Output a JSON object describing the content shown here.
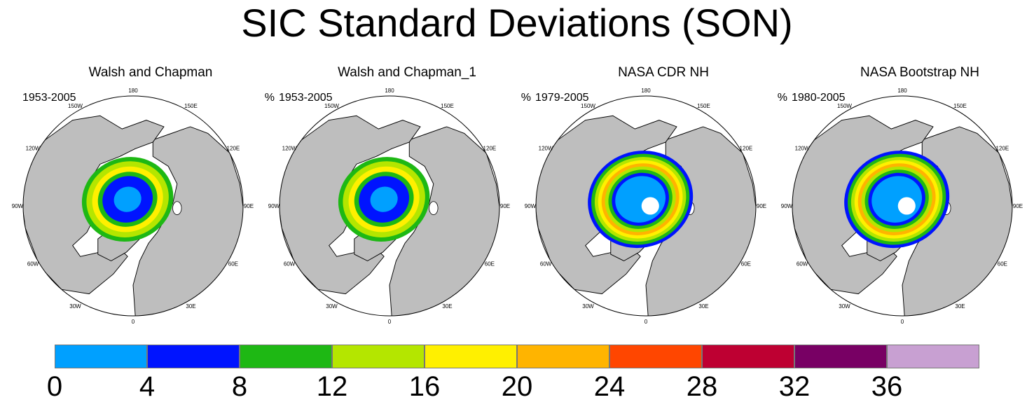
{
  "title": "SIC Standard Deviations (SON)",
  "unit": "%",
  "longitude_labels": [
    "180",
    "150W",
    "150E",
    "120W",
    "120E",
    "90W",
    "90E",
    "60W",
    "60E",
    "30W",
    "30E",
    "0"
  ],
  "panels": [
    {
      "title": "Walsh and Chapman",
      "years": "1953-2005",
      "pole_hole": false,
      "pattern": "wc"
    },
    {
      "title": "Walsh and Chapman_1",
      "years": "1953-2005",
      "pole_hole": false,
      "pattern": "wc"
    },
    {
      "title": "NASA CDR NH",
      "years": "1979-2005",
      "pole_hole": true,
      "pattern": "nasa"
    },
    {
      "title": "NASA Bootstrap NH",
      "years": "1980-2005",
      "pole_hole": true,
      "pattern": "nasa"
    }
  ],
  "colorbar": {
    "labels": [
      "0",
      "4",
      "8",
      "12",
      "16",
      "20",
      "24",
      "28",
      "32",
      "36"
    ],
    "colors": [
      "#00a0ff",
      "#0014ff",
      "#1eb814",
      "#b4e600",
      "#fff000",
      "#ffb400",
      "#ff4600",
      "#be0032",
      "#780064",
      "#c8a0d2"
    ]
  },
  "colors": {
    "land": "#bebebe",
    "ocean": "#ffffff",
    "outline": "#000000"
  }
}
